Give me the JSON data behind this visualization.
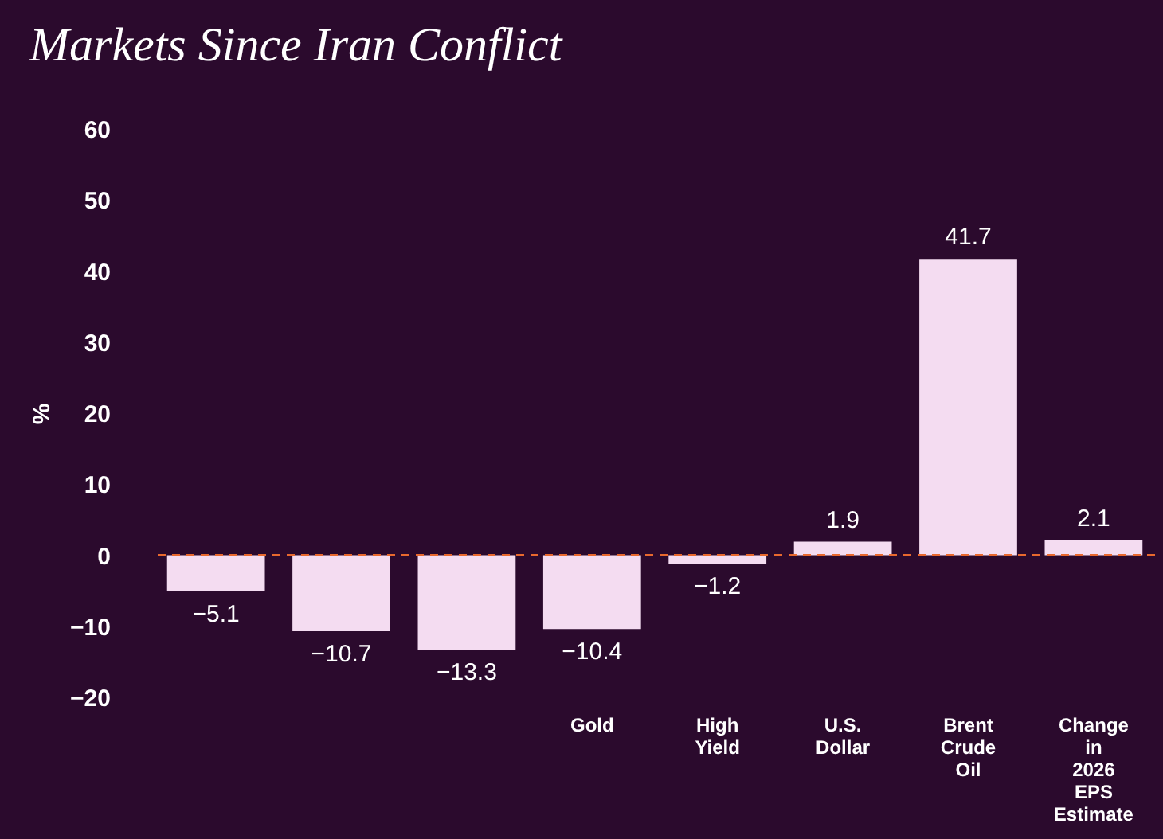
{
  "chart_data": {
    "type": "bar",
    "title": "Markets Since Iran Conflict",
    "ylabel": "%",
    "categories": [
      null,
      null,
      null,
      "Gold",
      "High Yield",
      "U.S. Dollar",
      "Brent Crude Oil",
      "Change in 2026 EPS Estimate"
    ],
    "values": [
      -5.1,
      -10.7,
      -13.3,
      -10.4,
      -1.2,
      1.9,
      41.7,
      2.1
    ],
    "color": "#f4dcf1",
    "ylim": [
      -20,
      60
    ],
    "yticks": [
      -20,
      -10,
      0,
      10,
      20,
      30,
      40,
      50,
      60
    ],
    "grid": false,
    "data_labels": true,
    "ref_lines": [
      {
        "axis": "y",
        "value": 0,
        "color": "#e8692e",
        "line_style": "dashed"
      }
    ]
  }
}
